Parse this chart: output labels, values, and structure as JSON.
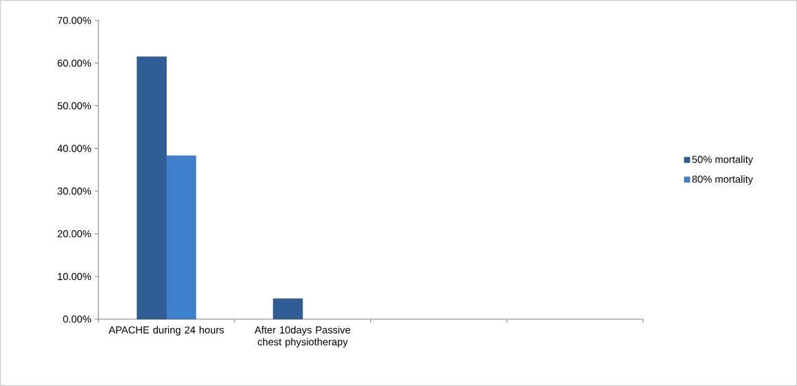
{
  "chart_data": {
    "type": "bar",
    "categories": [
      "APACHE during 24 hours",
      "After 10days Passive chest physiotherapy",
      null,
      null
    ],
    "series": [
      {
        "name": "50% mortality",
        "color": "#2f5d96",
        "values": [
          61.5,
          4.8,
          null,
          null
        ]
      },
      {
        "name": "80% mortality",
        "color": "#3f80cc",
        "values": [
          38.3,
          null,
          null,
          null
        ]
      }
    ],
    "ylim": [
      0,
      70
    ],
    "yticks": [
      {
        "value": 0,
        "label": "0.00%"
      },
      {
        "value": 10,
        "label": "10.00%"
      },
      {
        "value": 20,
        "label": "20.00%"
      },
      {
        "value": 30,
        "label": "30.00%"
      },
      {
        "value": 40,
        "label": "40.00%"
      },
      {
        "value": 50,
        "label": "50.00%"
      },
      {
        "value": 60,
        "label": "60.00%"
      },
      {
        "value": 70,
        "label": "70.00%"
      }
    ],
    "legend": "right"
  }
}
